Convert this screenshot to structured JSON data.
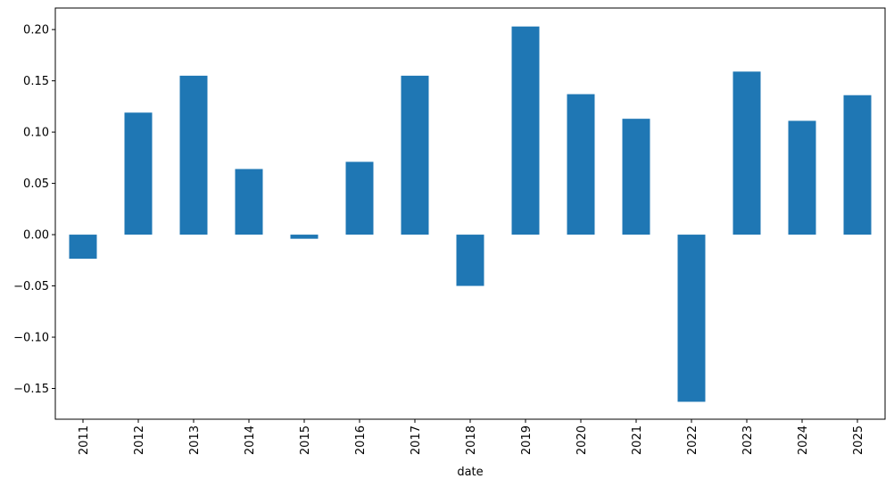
{
  "chart_data": {
    "type": "bar",
    "x_label": "date",
    "categories": [
      "2011",
      "2012",
      "2013",
      "2014",
      "2015",
      "2016",
      "2017",
      "2018",
      "2019",
      "2020",
      "2021",
      "2022",
      "2023",
      "2024",
      "2025"
    ],
    "values": [
      -0.0235,
      0.119,
      0.155,
      0.064,
      -0.004,
      0.071,
      0.155,
      -0.05,
      0.203,
      0.137,
      0.113,
      -0.163,
      0.159,
      0.111,
      0.136
    ],
    "color": "#1f77b4",
    "ylim": [
      -0.18,
      0.221
    ],
    "yticks": [
      {
        "value": -0.15,
        "label": "−0.15"
      },
      {
        "value": -0.1,
        "label": "−0.10"
      },
      {
        "value": -0.05,
        "label": "−0.05"
      },
      {
        "value": 0,
        "label": "0.00"
      },
      {
        "value": 0.05,
        "label": "0.05"
      },
      {
        "value": 0.1,
        "label": "0.10"
      },
      {
        "value": 0.15,
        "label": "0.15"
      },
      {
        "value": 0.2,
        "label": "0.20"
      }
    ]
  }
}
